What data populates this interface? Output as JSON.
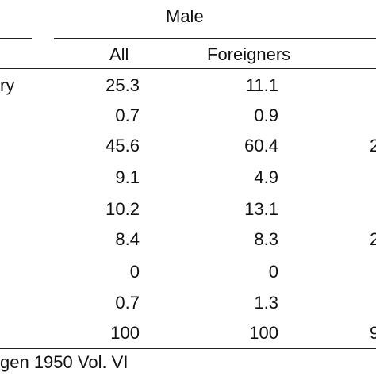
{
  "table": {
    "group_header": "Male",
    "columns": [
      "All",
      "Foreigners"
    ],
    "rows": [
      {
        "label": "ry",
        "all": "25.3",
        "foreigners": "11.1",
        "clip": ""
      },
      {
        "label": "",
        "all": "0.7",
        "foreigners": "0.9",
        "clip": ""
      },
      {
        "label": "",
        "all": "45.6",
        "foreigners": "60.4",
        "clip": "2"
      },
      {
        "label": "",
        "all": "9.1",
        "foreigners": "4.9",
        "clip": ""
      },
      {
        "label": "",
        "all": "10.2",
        "foreigners": "13.1",
        "clip": ""
      },
      {
        "label": "",
        "all": "8.4",
        "foreigners": "8.3",
        "clip": "2"
      },
      {
        "label": "",
        "all": "0",
        "foreigners": "0",
        "clip": ""
      },
      {
        "label": "",
        "all": "0.7",
        "foreigners": "1.3",
        "clip": ""
      },
      {
        "label": "",
        "all": "100",
        "foreigners": "100",
        "clip": "9"
      }
    ],
    "source_note": "gen 1950 Vol. VI"
  }
}
